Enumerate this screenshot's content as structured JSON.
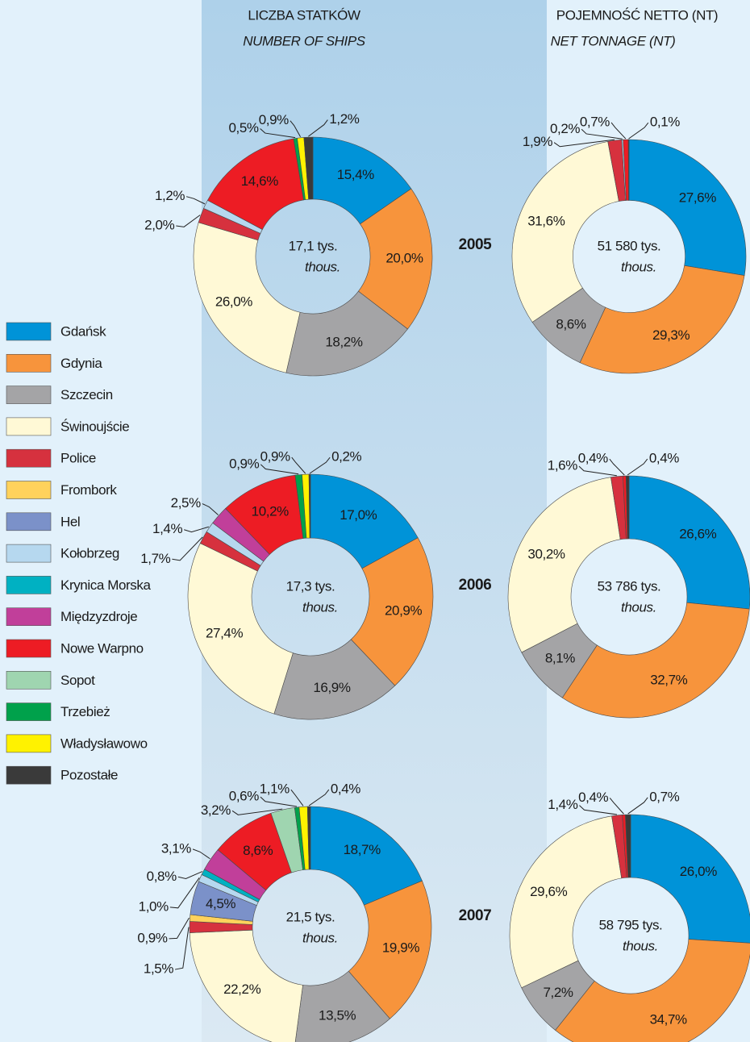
{
  "column_titles": [
    {
      "title": "LICZBA STATKÓW",
      "subtitle": "NUMBER OF SHIPS"
    },
    {
      "title": "POJEMNOŚĆ NETTO (NT)",
      "subtitle": "NET TONNAGE (NT)"
    }
  ],
  "legend": {
    "categories": [
      "Gdańsk",
      "Gdynia",
      "Szczecin",
      "Świnoujście",
      "Police",
      "Frombork",
      "Hel",
      "Kołobrzeg",
      "Krynica Morska",
      "Międzyzdroje",
      "Nowe Warpno",
      "Sopot",
      "Trzebież",
      "Władysławowo",
      "Pozostałe"
    ],
    "colors": [
      "#0093d8",
      "#f7943c",
      "#a4a4a6",
      "#fff9d6",
      "#d6313e",
      "#ffd25c",
      "#7b91c9",
      "#b6d8ef",
      "#00b1c2",
      "#c13f9a",
      "#ed1c24",
      "#9fd5b0",
      "#00a14b",
      "#fff200",
      "#3a3a3a"
    ]
  },
  "chart_data": [
    {
      "type": "pie",
      "year": "2005",
      "center_label": "17,1 tys.",
      "center_sublabel": "thous.",
      "values": [
        15.4,
        20.0,
        18.2,
        26.0,
        2.0,
        null,
        null,
        1.2,
        null,
        null,
        14.6,
        null,
        0.5,
        0.9,
        1.2
      ],
      "value_labels": [
        "15,4%",
        "20,0%",
        "18,2%",
        "26,0%",
        "2,0%",
        null,
        null,
        "1,2%",
        null,
        null,
        "14,6%",
        null,
        "0,5%",
        "0,9%",
        "1,2%"
      ]
    },
    {
      "type": "pie",
      "center_label": "51 580 tys.",
      "center_sublabel": "thous.",
      "values": [
        27.6,
        29.3,
        8.6,
        31.6,
        1.9,
        null,
        null,
        0.2,
        null,
        null,
        0.7,
        null,
        null,
        null,
        0.1
      ],
      "value_labels": [
        "27,6%",
        "29,3%",
        "8,6%",
        "31,6%",
        "1,9%",
        null,
        null,
        "0,2%",
        null,
        null,
        "0,7%",
        null,
        null,
        null,
        "0,1%"
      ]
    },
    {
      "type": "pie",
      "year": "2006",
      "center_label": "17,3 tys.",
      "center_sublabel": "thous.",
      "values": [
        17.0,
        20.9,
        16.9,
        27.4,
        1.7,
        null,
        null,
        1.4,
        null,
        2.5,
        10.2,
        null,
        0.9,
        0.9,
        0.2
      ],
      "value_labels": [
        "17,0%",
        "20,9%",
        "16,9%",
        "27,4%",
        "1,7%",
        null,
        null,
        "1,4%",
        null,
        "2,5%",
        "10,2%",
        null,
        "0,9%",
        "0,9%",
        "0,2%"
      ]
    },
    {
      "type": "pie",
      "center_label": "53 786 tys.",
      "center_sublabel": "thous.",
      "values": [
        26.6,
        32.7,
        8.1,
        30.2,
        1.6,
        null,
        null,
        null,
        null,
        null,
        0.4,
        null,
        null,
        null,
        0.4
      ],
      "value_labels": [
        "26,6%",
        "32,7%",
        "8,1%",
        "30,2%",
        "1,6%",
        null,
        null,
        null,
        null,
        null,
        "0,4%",
        null,
        null,
        null,
        "0,4%"
      ]
    },
    {
      "type": "pie",
      "year": "2007",
      "center_label": "21,5 tys.",
      "center_sublabel": "thous.",
      "values": [
        18.7,
        19.9,
        13.5,
        22.2,
        1.5,
        0.9,
        4.5,
        1.0,
        0.8,
        3.1,
        8.6,
        3.2,
        0.6,
        1.1,
        0.4
      ],
      "value_labels": [
        "18,7%",
        "19,9%",
        "13,5%",
        "22,2%",
        "1,5%",
        "0,9%",
        "4,5%",
        "1,0%",
        "0,8%",
        "3,1%",
        "8,6%",
        "3,2%",
        "0,6%",
        "1,1%",
        "0,4%"
      ]
    },
    {
      "type": "pie",
      "center_label": "58 795 tys.",
      "center_sublabel": "thous.",
      "values": [
        26.0,
        34.7,
        7.2,
        29.6,
        1.4,
        null,
        null,
        null,
        null,
        null,
        0.4,
        null,
        null,
        null,
        0.7
      ],
      "value_labels": [
        "26,0%",
        "34,7%",
        "7,2%",
        "29,6%",
        "1,4%",
        null,
        null,
        null,
        null,
        null,
        "0,4%",
        null,
        null,
        null,
        "0,7%"
      ]
    }
  ]
}
